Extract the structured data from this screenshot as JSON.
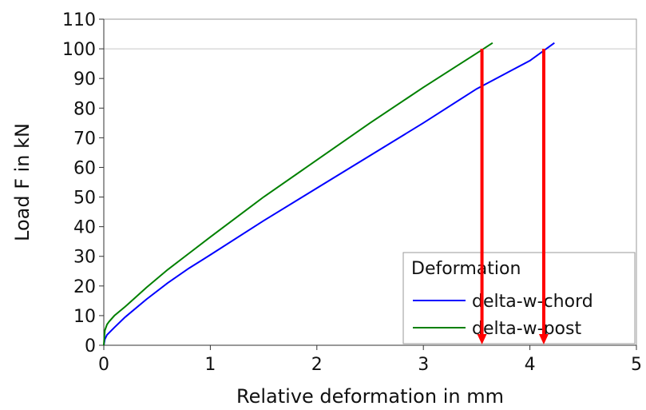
{
  "chart_data": {
    "type": "line",
    "title": "",
    "xlabel": "Relative deformation in mm",
    "ylabel": "Load F in kN",
    "xlim": [
      0,
      5
    ],
    "ylim": [
      0,
      110
    ],
    "xticks": [
      "0",
      "1",
      "2",
      "3",
      "4",
      "5"
    ],
    "yticks": [
      "0",
      "10",
      "20",
      "30",
      "40",
      "50",
      "60",
      "70",
      "80",
      "90",
      "100",
      "110"
    ],
    "grid": false,
    "reference_line_y": 100,
    "legend": {
      "title": "Deformation",
      "placement": "bottom-right"
    },
    "series": [
      {
        "name": "delta-w-chord",
        "color": "#0000ff",
        "x": [
          0,
          0.01,
          0.03,
          0.1,
          0.2,
          0.4,
          0.6,
          0.8,
          1.0,
          1.5,
          2.0,
          2.5,
          3.0,
          3.5,
          4.0,
          4.23
        ],
        "y": [
          0,
          2.0,
          3.5,
          6,
          9.5,
          15.5,
          21,
          26,
          30.5,
          42,
          53,
          64,
          75,
          86.5,
          96,
          102
        ]
      },
      {
        "name": "delta-w-post",
        "color": "#008000",
        "x": [
          0,
          0.005,
          0.01,
          0.03,
          0.05,
          0.1,
          0.2,
          0.4,
          0.6,
          0.8,
          1.0,
          1.5,
          2.0,
          2.5,
          3.0,
          3.5,
          3.65
        ],
        "y": [
          0,
          3,
          5,
          7,
          8,
          10,
          13,
          19.5,
          25.5,
          31,
          36.5,
          50,
          62.5,
          75,
          87,
          98.5,
          102
        ]
      }
    ],
    "annotations": [
      {
        "type": "arrow",
        "color": "#ff0000",
        "x": 3.55,
        "from_y": 100,
        "to_y": 0
      },
      {
        "type": "arrow",
        "color": "#ff0000",
        "x": 4.13,
        "from_y": 100,
        "to_y": 0
      }
    ]
  }
}
